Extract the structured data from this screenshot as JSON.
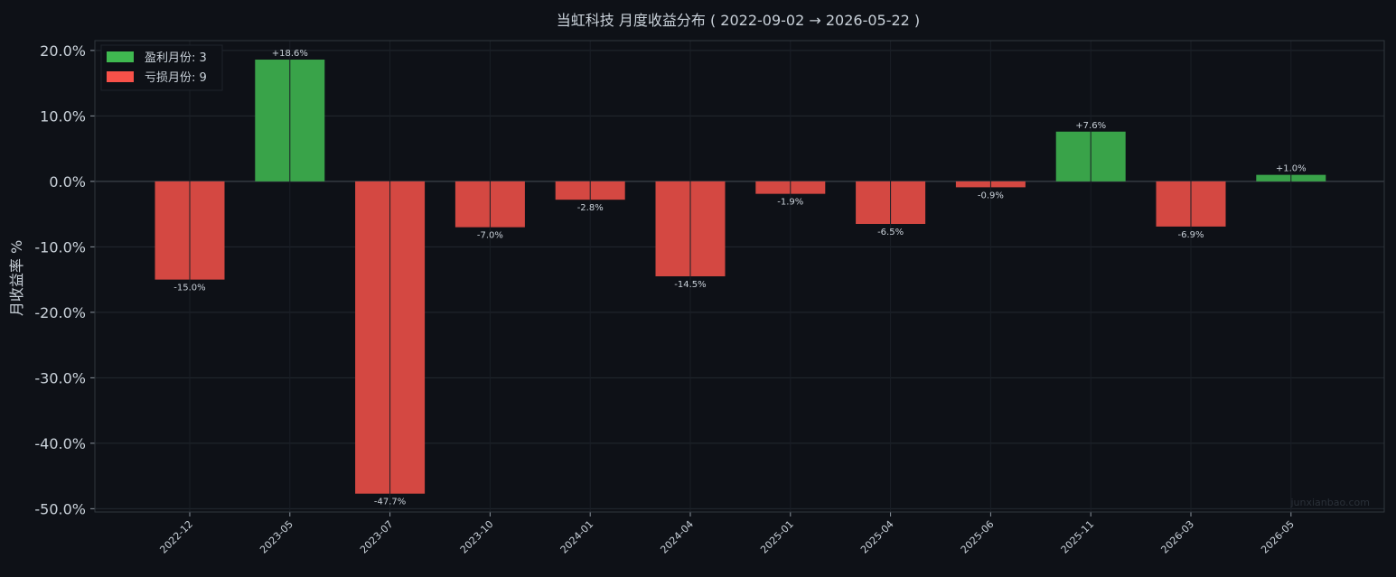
{
  "chart_data": {
    "type": "bar",
    "title": "当虹科技 月度收益分布 ( 2022-09-02 → 2026-05-22 )",
    "xlabel": "",
    "ylabel": "月收益率 %",
    "categories": [
      "2022-12",
      "2023-05",
      "2023-07",
      "2023-10",
      "2024-01",
      "2024-04",
      "2025-01",
      "2025-04",
      "2025-06",
      "2025-11",
      "2026-03",
      "2026-05"
    ],
    "values": [
      -15.0,
      18.6,
      -47.7,
      -7.0,
      -2.8,
      -14.5,
      -1.9,
      -6.5,
      -0.9,
      7.6,
      -6.9,
      1.0
    ],
    "data_labels": [
      "-15.0%",
      "+18.6%",
      "-47.7%",
      "-7.0%",
      "-2.8%",
      "-14.5%",
      "-1.9%",
      "-6.5%",
      "-0.9%",
      "+7.6%",
      "-6.9%",
      "+1.0%"
    ],
    "ylim": [
      -50.5,
      21.5
    ],
    "yticks": [
      20,
      10,
      0,
      -10,
      -20,
      -30,
      -40,
      -50
    ],
    "ytick_labels": [
      "20.0%",
      "10.0%",
      "0.0%",
      "-10.0%",
      "-20.0%",
      "-30.0%",
      "-40.0%",
      "-50.0%"
    ],
    "grid": true,
    "legend_position": "top-left",
    "legend": [
      {
        "label": "盈利月份: 3",
        "color": "#3fb950"
      },
      {
        "label": "亏损月份: 9",
        "color": "#f85149"
      }
    ],
    "colors": {
      "positive": "#39a349",
      "negative": "#d44842",
      "background": "#0e1117",
      "grid": "#232830",
      "text": "#c9d1d9"
    },
    "watermark": "junxianbao.com"
  }
}
